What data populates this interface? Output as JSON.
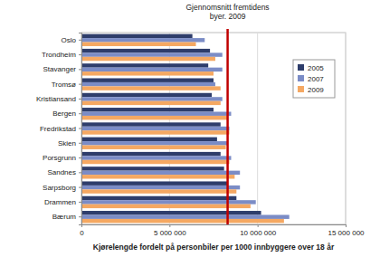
{
  "chart_data": {
    "type": "bar",
    "orientation": "horizontal",
    "xlabel": "Kjørelengde fordelt på personbiler per 1000 innbyggere over 18 år",
    "categories": [
      "Oslo",
      "Trondheim",
      "Stavanger",
      "Tromsø",
      "Kristiansand",
      "Bergen",
      "Fredrikstad",
      "Skien",
      "Porsgrunn",
      "Sandnes",
      "Sarpsborg",
      "Drammen",
      "Bærum"
    ],
    "series": [
      {
        "name": "2005",
        "color": "#2e3d6b",
        "values": [
          6300000,
          7300000,
          7200000,
          7500000,
          7400000,
          7500000,
          7900000,
          7700000,
          7900000,
          8100000,
          8300000,
          8800000,
          10200000
        ]
      },
      {
        "name": "2007",
        "color": "#7b8cc6",
        "values": [
          7000000,
          8000000,
          8000000,
          7600000,
          8000000,
          8500000,
          8400000,
          8300000,
          8500000,
          9000000,
          9000000,
          9900000,
          11800000
        ]
      },
      {
        "name": "2009",
        "color": "#f5a862",
        "values": [
          6500000,
          7600000,
          7500000,
          7900000,
          7900000,
          8300000,
          8400000,
          8200000,
          8400000,
          8700000,
          8800000,
          9600000,
          11500000
        ]
      }
    ],
    "xlim": [
      0,
      15000000
    ],
    "xticks": [
      0,
      {
        "value": 5000000,
        "label": "5 000 000"
      },
      {
        "value": 10000000,
        "label": "10 000 000"
      },
      {
        "value": 15000000,
        "label": "15 000 000"
      }
    ],
    "grid": true,
    "legend": "right",
    "annotations": [
      {
        "text": [
          "Gjennomsnitt fremtidens",
          "byer. 2009"
        ],
        "x": 8300000,
        "color": "#c00000"
      }
    ]
  }
}
